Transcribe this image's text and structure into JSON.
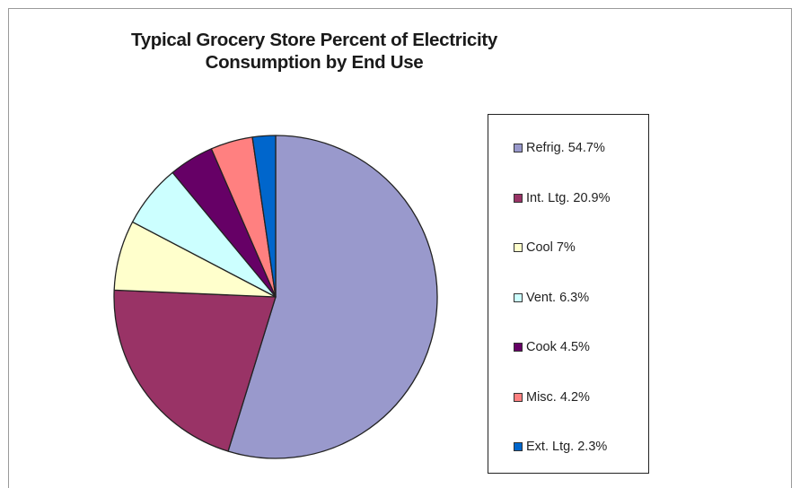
{
  "chart_data": {
    "type": "pie",
    "title": [
      "Typical Grocery Store Percent of Electricity",
      "Consumption by End Use"
    ],
    "legend_position": "right",
    "slices": [
      {
        "label": "Refrig. 54.7%",
        "value": 54.7,
        "color": "#9999cc"
      },
      {
        "label": "Int. Ltg. 20.9%",
        "value": 20.9,
        "color": "#993366"
      },
      {
        "label": "Cool 7%",
        "value": 7.0,
        "color": "#ffffcc"
      },
      {
        "label": "Vent. 6.3%",
        "value": 6.3,
        "color": "#ccffff"
      },
      {
        "label": "Cook 4.5%",
        "value": 4.5,
        "color": "#660066"
      },
      {
        "label": "Misc. 4.2%",
        "value": 4.2,
        "color": "#ff8080"
      },
      {
        "label": "Ext. Ltg. 2.3%",
        "value": 2.3,
        "color": "#0066cc"
      }
    ]
  }
}
